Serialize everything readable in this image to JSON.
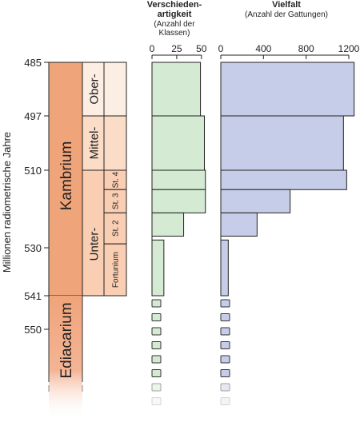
{
  "chart_data": {
    "type": "bar",
    "y_axis": {
      "label": "Millionen radiometrische Jahre",
      "ticks": [
        485,
        497,
        510,
        530,
        541,
        550
      ]
    },
    "stratigraphy": {
      "systems": [
        {
          "name": "Kambrium",
          "from": 485,
          "to": 541,
          "color": "#f0a47a"
        },
        {
          "name": "Ediacarium",
          "from": 541,
          "to": 565,
          "color": "#f0a47a"
        }
      ],
      "series": [
        {
          "name": "Ober-",
          "from": 485,
          "to": 497,
          "color": "#fdeee4"
        },
        {
          "name": "Mittel-",
          "from": 497,
          "to": 510,
          "color": "#fbdcc7"
        },
        {
          "name": "Unter-",
          "from": 510,
          "to": 541,
          "color": "#f9ceb2"
        }
      ],
      "stages": [
        {
          "name": "St. 4",
          "from": 510,
          "to": 515
        },
        {
          "name": "St. 3",
          "from": 515,
          "to": 521
        },
        {
          "name": "St. 2",
          "from": 521,
          "to": 529
        },
        {
          "name": "Fortunium",
          "from": 529,
          "to": 541
        }
      ]
    },
    "panels": [
      {
        "title": "Verschieden-\nartigkeit",
        "subtitle": "(Anzahl der\nKlassen)",
        "xlim": [
          0,
          55
        ],
        "ticks": [
          0,
          25,
          50
        ],
        "color": "#d4ead3",
        "bars": [
          {
            "from": 485,
            "to": 497,
            "value": 49
          },
          {
            "from": 497,
            "to": 510,
            "value": 53
          },
          {
            "from": 510,
            "to": 515,
            "value": 54
          },
          {
            "from": 515,
            "to": 521,
            "value": 54
          },
          {
            "from": 521,
            "to": 527,
            "value": 32
          },
          {
            "from": 528,
            "to": 541,
            "value": 12
          }
        ]
      },
      {
        "title": "Vielfalt",
        "subtitle": "(Anzahl der Gattungen)",
        "xlim": [
          0,
          1260
        ],
        "ticks": [
          0,
          400,
          800,
          1200
        ],
        "color": "#c6cde8",
        "bars": [
          {
            "from": 485,
            "to": 497,
            "value": 1250
          },
          {
            "from": 497,
            "to": 510,
            "value": 1150
          },
          {
            "from": 510,
            "to": 515,
            "value": 1180
          },
          {
            "from": 515,
            "to": 521,
            "value": 650
          },
          {
            "from": 521,
            "to": 527,
            "value": 340
          },
          {
            "from": 528,
            "to": 541,
            "value": 70
          }
        ]
      }
    ],
    "ediacaran_markers": 8
  }
}
